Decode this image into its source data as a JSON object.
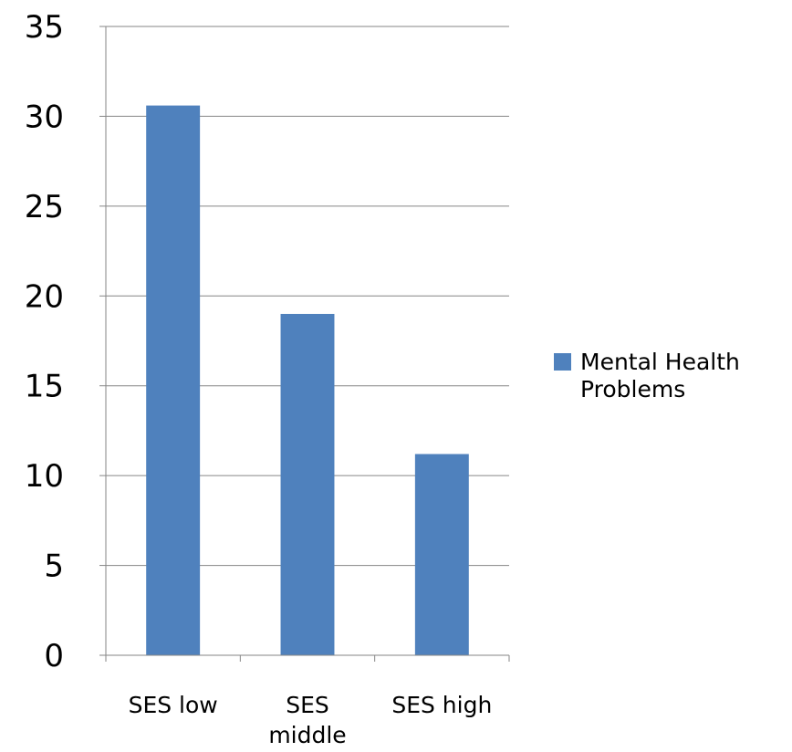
{
  "chart_data": {
    "type": "bar",
    "categories": [
      "SES low",
      "SES middle",
      "SES high"
    ],
    "category_lines": [
      [
        "SES low"
      ],
      [
        "SES",
        "middle"
      ],
      [
        "SES high"
      ]
    ],
    "series": [
      {
        "name": "Mental Health Problems",
        "name_lines": [
          "Mental Health",
          "Problems"
        ],
        "values": [
          30.6,
          19.0,
          11.2
        ],
        "color": "#4F81BD"
      }
    ],
    "ylim": [
      0,
      35
    ],
    "yticks": [
      "0",
      "5",
      "10",
      "15",
      "20",
      "25",
      "30",
      "35"
    ],
    "grid": true,
    "gridline_color": "#868686",
    "legend": "right"
  }
}
